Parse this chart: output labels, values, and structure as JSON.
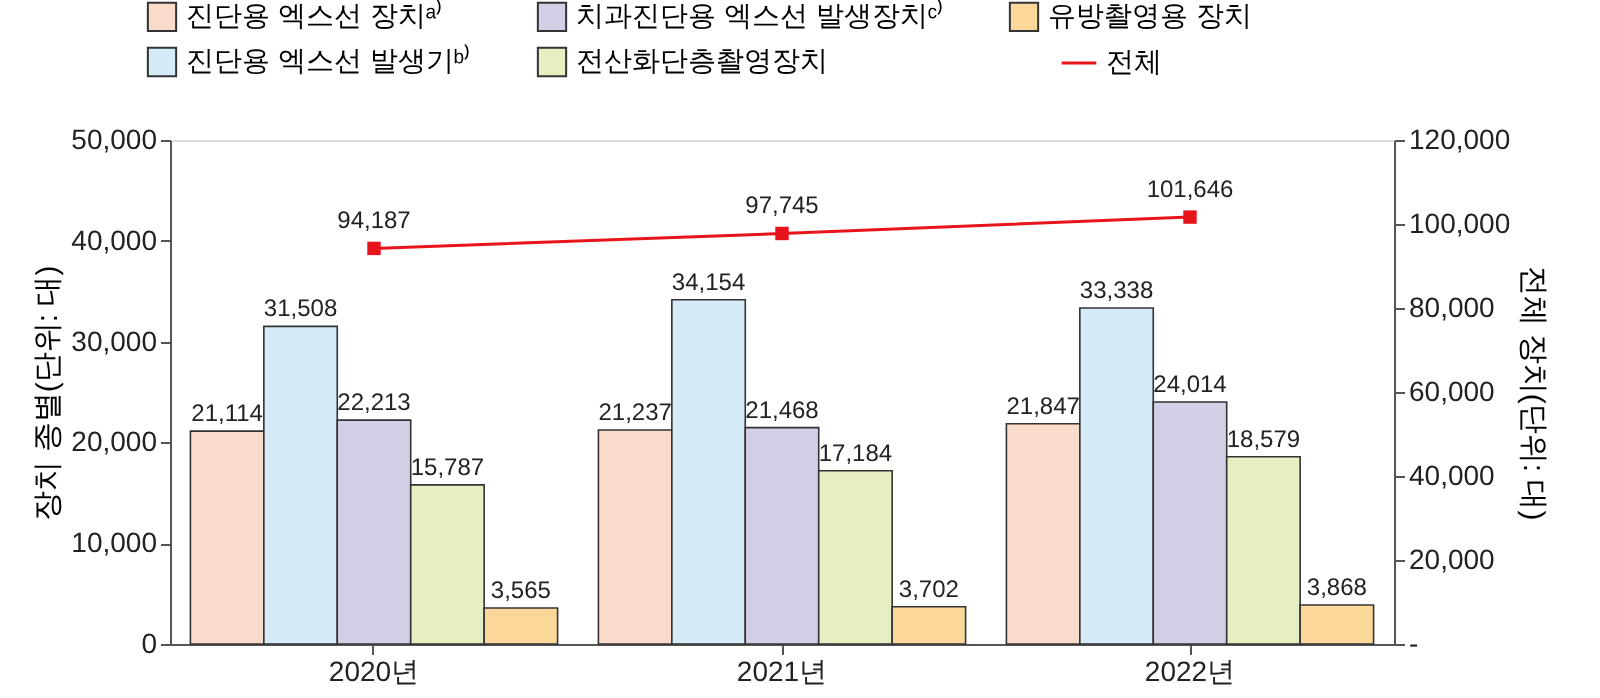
{
  "chart_data": {
    "type": "bar",
    "categories": [
      "2020년",
      "2021년",
      "2022년"
    ],
    "ylabel": "장치 종별(단위: 대)",
    "y2label": "전체 장치(단위: 대)",
    "series": [
      {
        "name": "진단용 엑스선 장치ᵃ⁾",
        "color": "#fadac8",
        "values": [
          21114,
          21237,
          21847
        ],
        "value_labels": [
          "21,114",
          "21,237",
          "21,847"
        ]
      },
      {
        "name": "진단용 엑스선 발생기ᵇ⁾",
        "color": "#d5ecf8",
        "values": [
          31508,
          34154,
          33338
        ],
        "value_labels": [
          "31,508",
          "34,154",
          "33,338"
        ]
      },
      {
        "name": "치과진단용 엑스선 발생장치ᶜ⁾",
        "color": "#d3cfe6",
        "values": [
          22213,
          21468,
          24014
        ],
        "value_labels": [
          "22,213",
          "21,468",
          "24,014"
        ]
      },
      {
        "name": "전산화단층촬영장치",
        "color": "#e6efc2",
        "values": [
          15787,
          17184,
          18579
        ],
        "value_labels": [
          "15,787",
          "17,184",
          "18,579"
        ]
      },
      {
        "name": "유방촬영용 장치",
        "color": "#fbd89a",
        "values": [
          3565,
          3702,
          3868
        ],
        "value_labels": [
          "3,565",
          "3,702",
          "3,868"
        ]
      },
      {
        "name": "전체",
        "type": "line",
        "axis": "y2",
        "color": "#e8141c",
        "marker": "square",
        "values": [
          94187,
          97745,
          101646
        ],
        "value_labels": [
          "94,187",
          "97,745",
          "101,646"
        ]
      }
    ],
    "ylim": [
      0,
      50000
    ],
    "yticks": [
      0,
      {
        "value": 10000,
        "label": "10,000"
      },
      {
        "value": 20000,
        "label": "20,000"
      },
      {
        "value": 30000,
        "label": "30,000"
      },
      {
        "value": 40000,
        "label": "40,000"
      },
      {
        "value": 50000,
        "label": "50,000"
      }
    ],
    "y2lim": [
      0,
      120000
    ],
    "y2ticks": [
      {
        "value": 0,
        "label": "-"
      },
      {
        "value": 20000,
        "label": "20,000"
      },
      {
        "value": 40000,
        "label": "40,000"
      },
      {
        "value": 60000,
        "label": "60,000"
      },
      {
        "value": 80000,
        "label": "80,000"
      },
      {
        "value": 100000,
        "label": "100,000"
      },
      {
        "value": 120000,
        "label": "120,000"
      }
    ],
    "grid": false,
    "legend": "top"
  }
}
